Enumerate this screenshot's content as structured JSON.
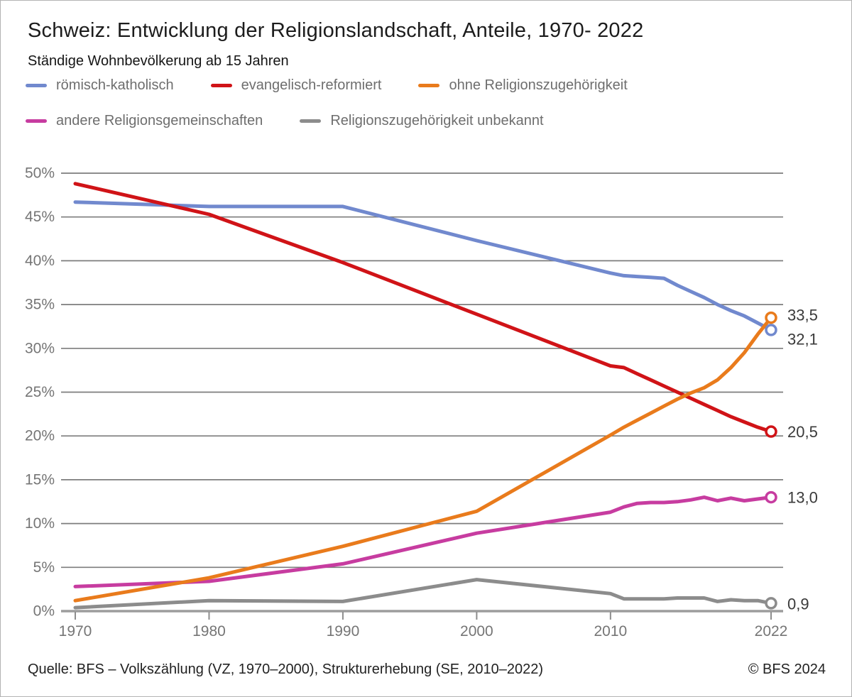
{
  "header": {
    "title": "Schweiz: Entwicklung der Religionslandschaft, Anteile, 1970- 2022",
    "subtitle": "Ständige Wohnbevölkerung ab 15 Jahren"
  },
  "footer": {
    "source": "Quelle: BFS – Volkszählung (VZ, 1970–2000), Strukturerhebung (SE, 2010–2022)",
    "copyright": "© BFS 2024"
  },
  "colors": {
    "gridline": "#7d7d7d",
    "axis_line": "#9d9d9d",
    "tick": "#8d8d8d",
    "axis_label": "#757575",
    "end_label": "#3a3a3a"
  },
  "chart_data": {
    "type": "line",
    "title": "Schweiz: Entwicklung der Religionslandschaft, Anteile, 1970- 2022",
    "subtitle": "Ständige Wohnbevölkerung ab 15 Jahren",
    "xlabel": "",
    "ylabel": "",
    "x": [
      1970,
      1980,
      1990,
      2000,
      2010,
      2011,
      2012,
      2013,
      2014,
      2015,
      2016,
      2017,
      2018,
      2019,
      2020,
      2021,
      2022
    ],
    "x_tick_years": [
      1970,
      1980,
      1990,
      2000,
      2010,
      2022
    ],
    "x_tick_labels": [
      "1970",
      "1980",
      "1990",
      "2000",
      "2010",
      "2022"
    ],
    "ylim": [
      0,
      50
    ],
    "y_tick_step": 5,
    "y_tick_suffix": "%",
    "grid": "horizontal",
    "legend_position": "top",
    "series": [
      {
        "name": "römisch-katholisch",
        "color": "#7189ce",
        "end_label": "32,1",
        "values": [
          46.7,
          46.2,
          46.2,
          42.3,
          38.6,
          38.3,
          38.2,
          38.1,
          38.0,
          37.2,
          36.5,
          35.8,
          35.0,
          34.3,
          33.7,
          32.9,
          32.1
        ]
      },
      {
        "name": "evangelisch-reformiert",
        "color": "#d01317",
        "end_label": "20,5",
        "values": [
          48.8,
          45.3,
          39.8,
          33.9,
          28.0,
          27.8,
          27.1,
          26.4,
          25.7,
          25.0,
          24.3,
          23.6,
          22.9,
          22.2,
          21.6,
          21.0,
          20.5
        ]
      },
      {
        "name": "ohne Religionszugehörigkeit",
        "color": "#e97b1c",
        "end_label": "33,5",
        "values": [
          1.2,
          3.8,
          7.4,
          11.4,
          20.1,
          21.0,
          21.8,
          22.6,
          23.4,
          24.2,
          24.9,
          25.5,
          26.4,
          27.8,
          29.5,
          31.6,
          33.5
        ]
      },
      {
        "name": "andere Religionsgemeinschaften",
        "color": "#c73ca0",
        "end_label": "13,0",
        "values": [
          2.8,
          3.4,
          5.4,
          8.9,
          11.3,
          11.9,
          12.3,
          12.4,
          12.4,
          12.5,
          12.7,
          13.0,
          12.6,
          12.9,
          12.6,
          12.8,
          13.0
        ]
      },
      {
        "name": "Religionszugehörigkeit unbekannt",
        "color": "#8c8c8c",
        "end_label": "0,9",
        "values": [
          0.4,
          1.2,
          1.1,
          3.6,
          2.0,
          1.4,
          1.4,
          1.4,
          1.4,
          1.5,
          1.5,
          1.5,
          1.1,
          1.3,
          1.2,
          1.2,
          0.9
        ]
      }
    ]
  }
}
